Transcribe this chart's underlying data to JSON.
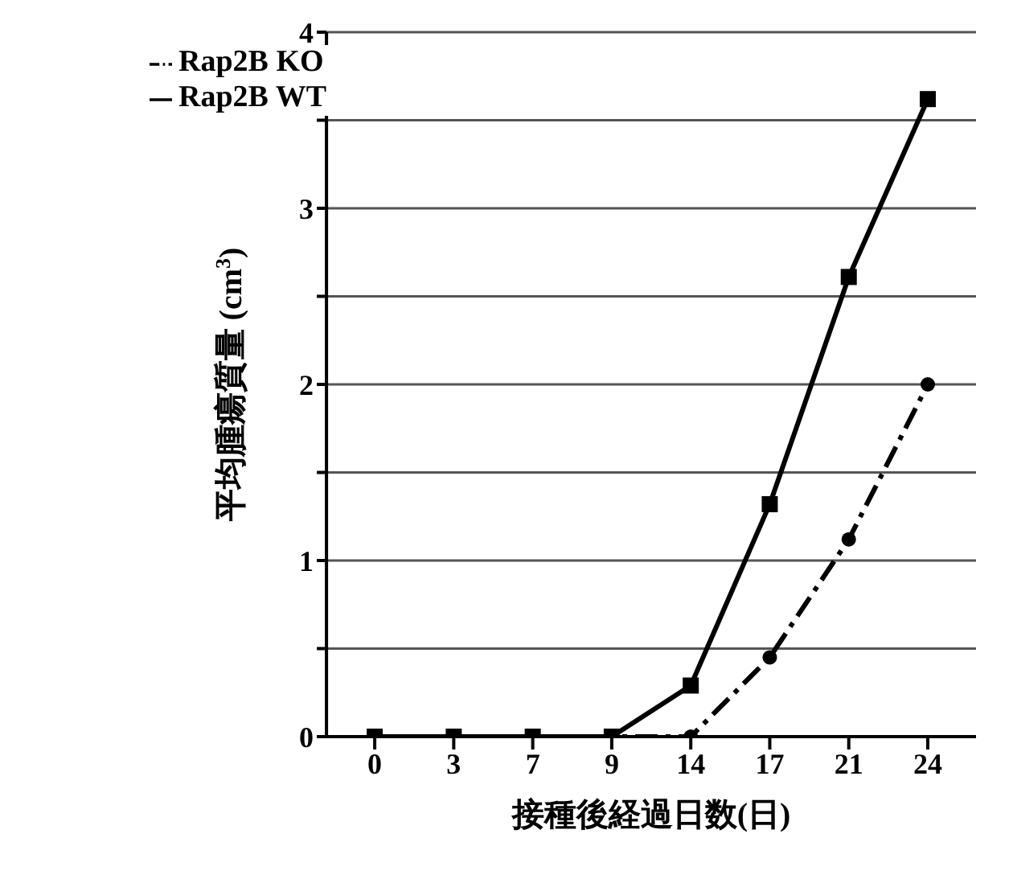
{
  "chart_data": {
    "type": "line",
    "xlabel": "接種後経過日数(日)",
    "ylabel": "平均腫瘍質量 (cm$^{3}$)",
    "categories": [
      "0",
      "3",
      "7",
      "9",
      "14",
      "17",
      "21",
      "24"
    ],
    "series": [
      {
        "name": "Rap2B WT",
        "color": "#000000",
        "marker": "square",
        "line_style": "solid",
        "values": [
          0,
          0,
          0,
          0,
          0.29,
          1.32,
          2.61,
          3.62
        ]
      },
      {
        "name": "Rap2B KO",
        "color": "#000000",
        "marker": "circle",
        "line_style": "dashed",
        "values": [
          0,
          0,
          0,
          0,
          0,
          0.45,
          1.12,
          2.0
        ]
      }
    ],
    "ylim": [
      0,
      4
    ],
    "yticks": [
      0,
      {
        "value": 0.5,
        "label": null
      },
      1,
      {
        "value": 1.5,
        "label": null
      },
      2,
      {
        "value": 2.5,
        "label": null
      },
      3,
      {
        "value": 3.5,
        "label": null
      },
      4
    ],
    "grid": "y",
    "legend": "top left"
  }
}
